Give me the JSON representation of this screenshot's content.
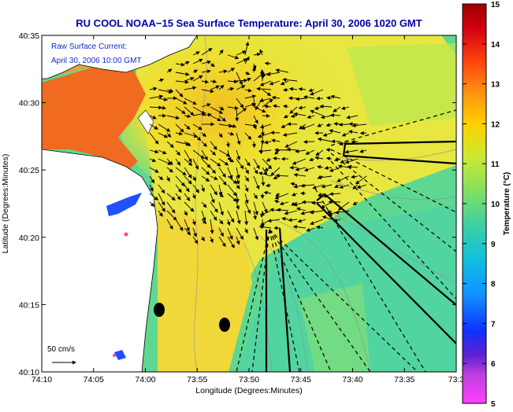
{
  "title": "RU COOL  NOAA−15  Sea Surface Temperature:  April 30, 2006 1020 GMT",
  "overlay": {
    "line1": "Raw Surface Current:",
    "line2": "April 30, 2006 10:00 GMT"
  },
  "scale_label": "50 cm/s",
  "axes": {
    "xlabel": "Longitude (Degrees:Minutes)",
    "ylabel": "Latitude (Degrees:Minutes)",
    "xticks": [
      "74:10",
      "74:05",
      "74:00",
      "73:55",
      "73:50",
      "73:45",
      "73:40",
      "73:35",
      "73:3"
    ],
    "yticks": [
      "40:35",
      "40:30",
      "40:25",
      "40:20",
      "40:15",
      "40:10"
    ]
  },
  "colorbar": {
    "label": "Temperature (°C)",
    "ticks": [
      "15",
      "14",
      "13",
      "12",
      "11",
      "10",
      "9",
      "8",
      "7",
      "6",
      "5"
    ]
  },
  "colors": {
    "title": "#0000aa",
    "land": "#ffffff",
    "ocean_cool": "#60d890",
    "ocean_warm": "#f0e030",
    "plume": "#f06020",
    "arrows": "#000000"
  }
}
